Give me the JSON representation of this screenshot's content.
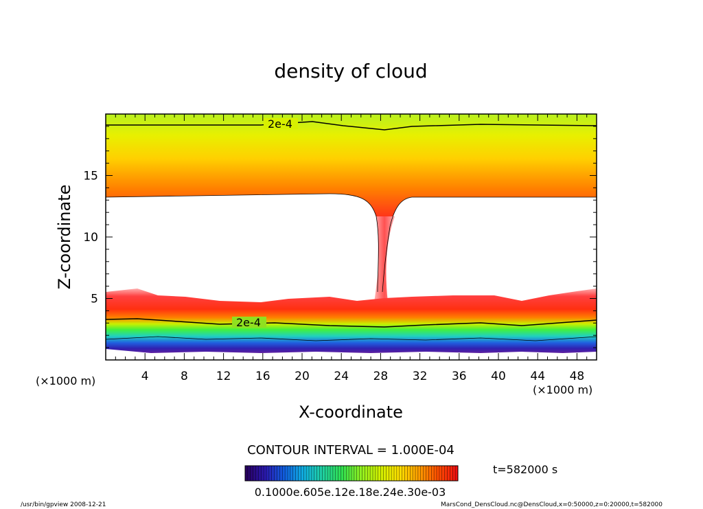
{
  "chart_data": {
    "type": "heatmap",
    "title": "density of cloud",
    "xlabel": "X-coordinate",
    "ylabel": "Z-coordinate",
    "x_unit_left": "(×1000 m)",
    "x_unit_right": "(×1000 m)",
    "xlim": [
      0,
      50
    ],
    "ylim": [
      0,
      20
    ],
    "xticks": [
      4,
      8,
      12,
      16,
      20,
      24,
      28,
      32,
      36,
      40,
      44,
      48
    ],
    "yticks": [
      5,
      10,
      15
    ],
    "contour_labels": [
      {
        "text": "2e-4",
        "x": 17,
        "z": 19.2
      },
      {
        "text": "2e-4",
        "x": 14,
        "z": 3.0
      }
    ],
    "contour_interval": "CONTOUR INTERVAL = 1.000E-04",
    "time_label": "t=582000 s",
    "colorbar_labels": [
      "0.10000",
      "e.605",
      "0e.12",
      "0e.18",
      "0e.24",
      "0e.30",
      "0e-03"
    ],
    "colorbar_text_raw": "0.1000e.605e.12e.18e.24e.30e-03",
    "colorbar_colors": [
      "#280060",
      "#2a1ab0",
      "#1060e0",
      "#10b0e0",
      "#20d0a0",
      "#30e050",
      "#90f020",
      "#d0f000",
      "#ffe000",
      "#ffa000",
      "#ff5000",
      "#f01010"
    ],
    "grid": false
  },
  "footer": {
    "left": "/usr/bin/gpview   2008-12-21",
    "right": "MarsCond_DensCloud.nc@DensCloud,x=0:50000,z=0:20000,t=582000"
  }
}
